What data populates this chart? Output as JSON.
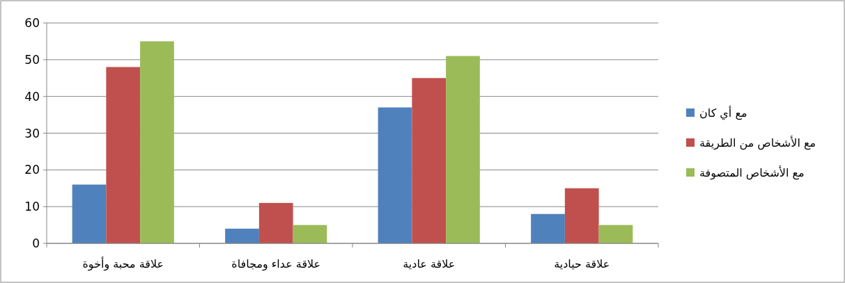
{
  "chart_data": {
    "type": "bar",
    "categories": [
      "علاقة محبة وأخوة",
      "علاقة عداء ومجافاة",
      "علاقة عادية",
      "علاقة حيادية"
    ],
    "series": [
      {
        "name": "مع أي كان",
        "color": "#4f81bd",
        "values": [
          16,
          4,
          37,
          8
        ]
      },
      {
        "name": "مع الأشخاص من الطريقة",
        "color": "#c0504d",
        "values": [
          48,
          11,
          45,
          15
        ]
      },
      {
        "name": "مع الأشخاص المتصوفة",
        "color": "#9bbb59",
        "values": [
          55,
          5,
          51,
          5
        ]
      }
    ],
    "ylim": [
      0,
      60
    ],
    "yticks": [
      0,
      10,
      20,
      30,
      40,
      50,
      60
    ],
    "grid": "y",
    "legend": "right"
  }
}
